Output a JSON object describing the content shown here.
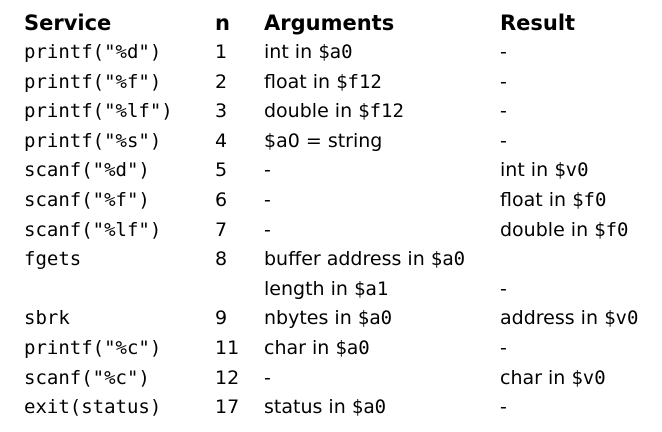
{
  "table": {
    "headers": {
      "service": "Service",
      "n": "n",
      "arguments": "Arguments",
      "result": "Result"
    },
    "rows": [
      {
        "service": "printf(\"%d\")",
        "n": "1",
        "args_text": "int in",
        "args_reg": "$a0",
        "result_text": "-",
        "result_reg": ""
      },
      {
        "service": "printf(\"%f\")",
        "n": "2",
        "args_text": "float in",
        "args_reg": "$f12",
        "result_text": "-",
        "result_reg": ""
      },
      {
        "service": "printf(\"%lf\")",
        "n": "3",
        "args_text": "double in",
        "args_reg": "$f12",
        "result_text": "-",
        "result_reg": ""
      },
      {
        "service": "printf(\"%s\")",
        "n": "4",
        "args_text": "$a0 = string",
        "args_reg": "",
        "result_text": "-",
        "result_reg": ""
      },
      {
        "service": "scanf(\"%d\")",
        "n": "5",
        "args_text": "-",
        "args_reg": "",
        "result_text": "int in",
        "result_reg": "$v0"
      },
      {
        "service": "scanf(\"%f\")",
        "n": "6",
        "args_text": "-",
        "args_reg": "",
        "result_text": "float in",
        "result_reg": "$f0"
      },
      {
        "service": "scanf(\"%lf\")",
        "n": "7",
        "args_text": "-",
        "args_reg": "",
        "result_text": "double in",
        "result_reg": "$f0"
      },
      {
        "service": "fgets",
        "n": "8",
        "args_text": "buffer address in",
        "args_reg": "$a0",
        "result_text": "",
        "result_reg": ""
      },
      {
        "service": "",
        "n": "",
        "args_text": "length in",
        "args_reg": "$a1",
        "result_text": "-",
        "result_reg": ""
      },
      {
        "service": "sbrk",
        "n": "9",
        "args_text": "nbytes in",
        "args_reg": "$a0",
        "result_text": "address in",
        "result_reg": "$v0"
      },
      {
        "service": "printf(\"%c\")",
        "n": "11",
        "args_text": "char in",
        "args_reg": "$a0",
        "result_text": "-",
        "result_reg": ""
      },
      {
        "service": "scanf(\"%c\")",
        "n": "12",
        "args_text": "-",
        "args_reg": "",
        "result_text": "char in",
        "result_reg": "$v0"
      },
      {
        "service": "exit(status)",
        "n": "17",
        "args_text": "status in",
        "args_reg": "$a0",
        "result_text": "-",
        "result_reg": ""
      }
    ]
  }
}
